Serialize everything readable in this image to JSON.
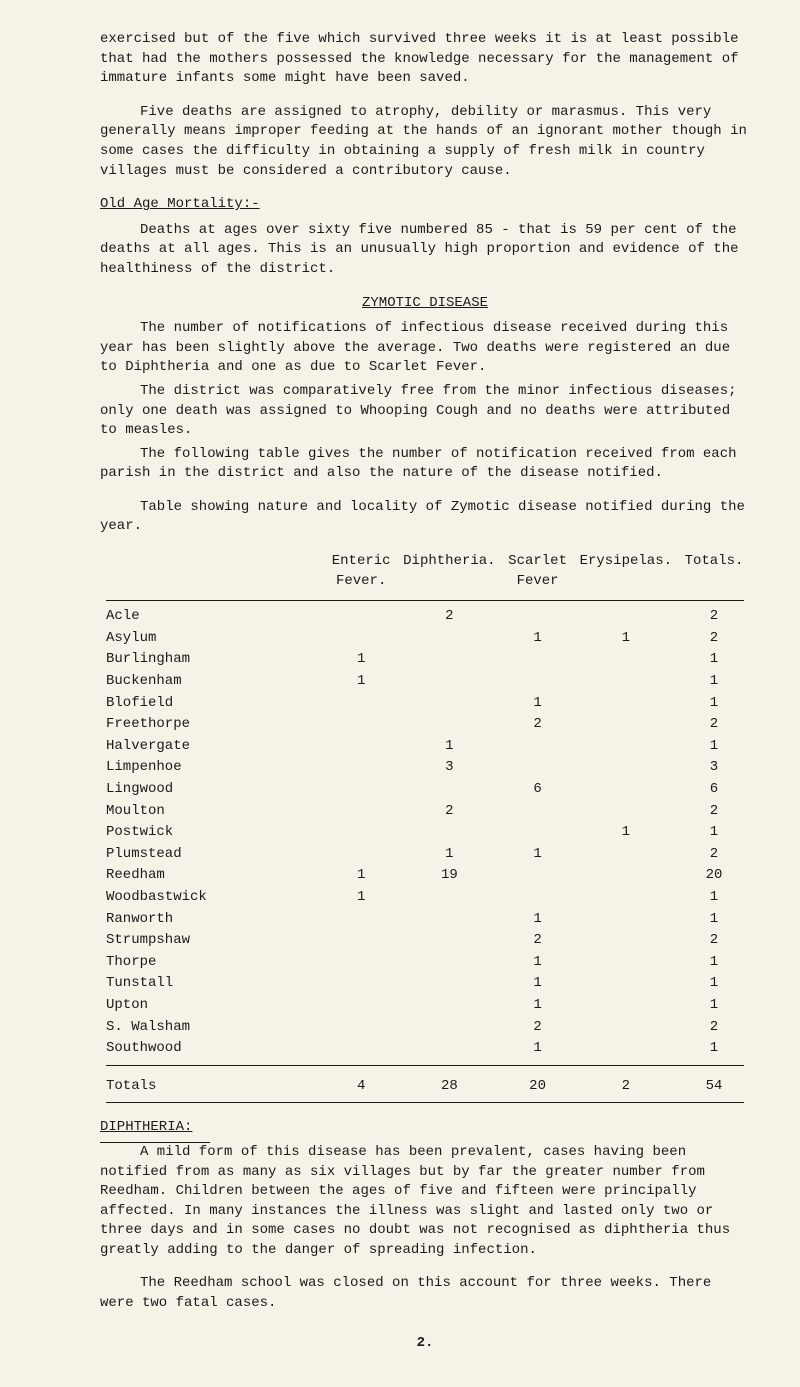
{
  "p1": "exercised but of the five which survived three weeks it is at least possible that had the mothers possessed the knowledge necessary for the management of immature infants some might have been saved.",
  "p2": "Five deaths are assigned to atrophy, debility or marasmus.  This very generally means improper feeding at the hands of an ignorant mother though in some cases the difficulty in obtaining a supply of fresh milk in country villages must be considered a contributory cause.",
  "oldAgeTitle": "Old Age Mortality:-",
  "p3": "Deaths at ages over sixty five numbered 85 - that is 59 per cent of the deaths at all ages.  This is an unusually high proportion and evidence of the healthiness of the district.",
  "zymoticTitle": "ZYMOTIC DISEASE",
  "p4": "The number of notifications of infectious disease received during this year has been slightly above the average.  Two deaths were registered an due to Diphtheria and one as due to Scarlet Fever.",
  "p5": "The district was comparatively free from the minor infectious diseases; only one death was assigned to Whooping Cough and no deaths were attributed to measles.",
  "p6": "The following table gives the number of notification received from each parish in the district and also the nature of the disease notified.",
  "tableCaption": "Table showing nature and locality of Zymotic disease notified during the year.",
  "headers": {
    "c1": "",
    "c2": "Enteric Fever.",
    "c3": "Diphtheria.",
    "c4": "Scarlet Fever",
    "c5": "Erysipelas.",
    "c6": "Totals."
  },
  "rows": [
    {
      "place": "Acle",
      "enteric": "",
      "diph": "2",
      "scarlet": "",
      "ery": "",
      "tot": "2"
    },
    {
      "place": "Asylum",
      "enteric": "",
      "diph": "",
      "scarlet": "1",
      "ery": "1",
      "tot": "2"
    },
    {
      "place": "Burlingham",
      "enteric": "1",
      "diph": "",
      "scarlet": "",
      "ery": "",
      "tot": "1"
    },
    {
      "place": "Buckenham",
      "enteric": "1",
      "diph": "",
      "scarlet": "",
      "ery": "",
      "tot": "1"
    },
    {
      "place": "Blofield",
      "enteric": "",
      "diph": "",
      "scarlet": "1",
      "ery": "",
      "tot": "1"
    },
    {
      "place": "Freethorpe",
      "enteric": "",
      "diph": "",
      "scarlet": "2",
      "ery": "",
      "tot": "2"
    },
    {
      "place": "Halvergate",
      "enteric": "",
      "diph": "1",
      "scarlet": "",
      "ery": "",
      "tot": "1"
    },
    {
      "place": "Limpenhoe",
      "enteric": "",
      "diph": "3",
      "scarlet": "",
      "ery": "",
      "tot": "3"
    },
    {
      "place": "Lingwood",
      "enteric": "",
      "diph": "",
      "scarlet": "6",
      "ery": "",
      "tot": "6"
    },
    {
      "place": "Moulton",
      "enteric": "",
      "diph": "2",
      "scarlet": "",
      "ery": "",
      "tot": "2"
    },
    {
      "place": "Postwick",
      "enteric": "",
      "diph": "",
      "scarlet": "",
      "ery": "1",
      "tot": "1"
    },
    {
      "place": "Plumstead",
      "enteric": "",
      "diph": "1",
      "scarlet": "1",
      "ery": "",
      "tot": "2"
    },
    {
      "place": "Reedham",
      "enteric": "1",
      "diph": "19",
      "scarlet": "",
      "ery": "",
      "tot": "20"
    },
    {
      "place": "Woodbastwick",
      "enteric": "1",
      "diph": "",
      "scarlet": "",
      "ery": "",
      "tot": "1"
    },
    {
      "place": "Ranworth",
      "enteric": "",
      "diph": "",
      "scarlet": "1",
      "ery": "",
      "tot": "1"
    },
    {
      "place": "Strumpshaw",
      "enteric": "",
      "diph": "",
      "scarlet": "2",
      "ery": "",
      "tot": "2"
    },
    {
      "place": "Thorpe",
      "enteric": "",
      "diph": "",
      "scarlet": "1",
      "ery": "",
      "tot": "1"
    },
    {
      "place": "Tunstall",
      "enteric": "",
      "diph": "",
      "scarlet": "1",
      "ery": "",
      "tot": "1"
    },
    {
      "place": "Upton",
      "enteric": "",
      "diph": "",
      "scarlet": "1",
      "ery": "",
      "tot": "1"
    },
    {
      "place": "S. Walsham",
      "enteric": "",
      "diph": "",
      "scarlet": "2",
      "ery": "",
      "tot": "2"
    },
    {
      "place": "Southwood",
      "enteric": "",
      "diph": "",
      "scarlet": "1",
      "ery": "",
      "tot": "1"
    }
  ],
  "totals": {
    "label": "Totals",
    "enteric": "4",
    "diph": "28",
    "scarlet": "20",
    "ery": "2",
    "tot": "54"
  },
  "diphTitle": "DIPHTHERIA:",
  "p7": "A mild form of this disease has been prevalent, cases having been notified from as many as six villages but by far the greater number from Reedham.  Children between the ages of five and fifteen were principally affected.  In many instances the illness was slight and lasted only two or three days and in some cases no doubt was not recognised as diphtheria thus greatly adding to the danger of spreading infection.",
  "p8": "The Reedham school was closed on this account for three weeks.  There were two fatal cases.",
  "pageNum": "2."
}
